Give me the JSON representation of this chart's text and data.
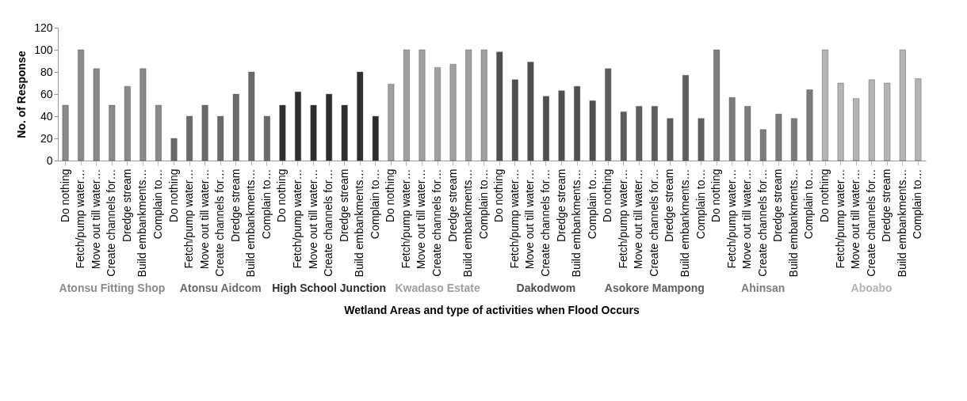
{
  "chart_data": {
    "type": "bar",
    "categories": [
      "Do nothing",
      "Fetch/pump water…",
      "Move out till water…",
      "Create channels for…",
      "Dredge stream",
      "Build embankments…",
      "Complain to…",
      "Do nothing",
      "Fetch/pump water…",
      "Move out till water…",
      "Create channels for…",
      "Dredge stream",
      "Build embankments…",
      "Complain to…",
      "Do nothing",
      "Fetch/pump water…",
      "Move out till water…",
      "Create channels for…",
      "Dredge stream",
      "Build embankments…",
      "Complain to…",
      "Do nothing",
      "Fetch/pump water…",
      "Move out till water…",
      "Create channels for…",
      "Dredge stream",
      "Build embankments…",
      "Complain to…",
      "Do nothing",
      "Fetch/pump water…",
      "Move out till water…",
      "Create channels for…",
      "Dredge stream",
      "Build embankments…",
      "Complain to…",
      "Do nothing",
      "Fetch/pump water…",
      "Move out till water…",
      "Create channels for…",
      "Dredge stream",
      "Build embankments…",
      "Complain to…",
      "Do nothing",
      "Fetch/pump water…",
      "Move out till water…",
      "Create channels for…",
      "Dredge stream",
      "Build embankments…",
      "Complain to…",
      "Do nothing",
      "Fetch/pump water…",
      "Move out till water…",
      "Create channels for…",
      "Dredge stream",
      "Build embankments…",
      "Complain to…"
    ],
    "series": [
      {
        "name": "Atonsu  Fitting Shop",
        "color": "#8a8a8a",
        "values": [
          50,
          100,
          83,
          50,
          67,
          83,
          50,
          null,
          null,
          null,
          null,
          null,
          null,
          null,
          null,
          null,
          null,
          null,
          null,
          null,
          null,
          null,
          null,
          null,
          null,
          null,
          null,
          null,
          null,
          null,
          null,
          null,
          null,
          null,
          null,
          null,
          null,
          null,
          null,
          null,
          null,
          null,
          null,
          null,
          null,
          null,
          null,
          null,
          null,
          null,
          null,
          null,
          null,
          null,
          null,
          null
        ]
      },
      {
        "name": "Atonsu Aidcom",
        "color": "#6a6a6a",
        "values": [
          null,
          null,
          null,
          null,
          null,
          null,
          null,
          20,
          40,
          50,
          40,
          60,
          80,
          40,
          null,
          null,
          null,
          null,
          null,
          null,
          null,
          null,
          null,
          null,
          null,
          null,
          null,
          null,
          null,
          null,
          null,
          null,
          null,
          null,
          null,
          null,
          null,
          null,
          null,
          null,
          null,
          null,
          null,
          null,
          null,
          null,
          null,
          null,
          null,
          null,
          null,
          null,
          null,
          null,
          null,
          null
        ]
      },
      {
        "name": "High School Junction",
        "color": "#2e2e2e",
        "values": [
          null,
          null,
          null,
          null,
          null,
          null,
          null,
          null,
          null,
          null,
          null,
          null,
          null,
          null,
          50,
          62,
          50,
          60,
          50,
          80,
          40,
          null,
          null,
          null,
          null,
          null,
          null,
          null,
          null,
          null,
          null,
          null,
          null,
          null,
          null,
          null,
          null,
          null,
          null,
          null,
          null,
          null,
          null,
          null,
          null,
          null,
          null,
          null,
          null,
          null,
          null,
          null,
          null,
          null,
          null,
          null
        ]
      },
      {
        "name": "Kwadaso Estate",
        "color": "#a0a0a0",
        "values": [
          null,
          null,
          null,
          null,
          null,
          null,
          null,
          null,
          null,
          null,
          null,
          null,
          null,
          null,
          null,
          null,
          null,
          null,
          null,
          null,
          null,
          69,
          100,
          100,
          84,
          87,
          100,
          100,
          null,
          null,
          null,
          null,
          null,
          null,
          null,
          null,
          null,
          null,
          null,
          null,
          null,
          null,
          null,
          null,
          null,
          null,
          null,
          null,
          null,
          null,
          null,
          null,
          null,
          null,
          null,
          null
        ]
      },
      {
        "name": "Dakodwom",
        "color": "#505050",
        "values": [
          null,
          null,
          null,
          null,
          null,
          null,
          null,
          null,
          null,
          null,
          null,
          null,
          null,
          null,
          null,
          null,
          null,
          null,
          null,
          null,
          null,
          null,
          null,
          null,
          null,
          null,
          null,
          null,
          98,
          73,
          89,
          58,
          63,
          67,
          54,
          null,
          null,
          null,
          null,
          null,
          null,
          null,
          null,
          null,
          null,
          null,
          null,
          null,
          null,
          null,
          null,
          null,
          null,
          null,
          null,
          null
        ]
      },
      {
        "name": "Asokore Mampong",
        "color": "#5e5e5e",
        "values": [
          null,
          null,
          null,
          null,
          null,
          null,
          null,
          null,
          null,
          null,
          null,
          null,
          null,
          null,
          null,
          null,
          null,
          null,
          null,
          null,
          null,
          null,
          null,
          null,
          null,
          null,
          null,
          null,
          null,
          null,
          null,
          null,
          null,
          null,
          null,
          83,
          44,
          49,
          49,
          38,
          77,
          38,
          null,
          null,
          null,
          null,
          null,
          null,
          null,
          null,
          null,
          null,
          null,
          null,
          null,
          null
        ]
      },
      {
        "name": "Ahinsan",
        "color": "#7c7c7c",
        "values": [
          null,
          null,
          null,
          null,
          null,
          null,
          null,
          null,
          null,
          null,
          null,
          null,
          null,
          null,
          null,
          null,
          null,
          null,
          null,
          null,
          null,
          null,
          null,
          null,
          null,
          null,
          null,
          null,
          null,
          null,
          null,
          null,
          null,
          null,
          null,
          null,
          null,
          null,
          null,
          null,
          null,
          null,
          100,
          57,
          49,
          28,
          42,
          38,
          64,
          null,
          null,
          null,
          null,
          null,
          null,
          null
        ]
      },
      {
        "name": "Aboabo",
        "color": "#b4b4b4",
        "values": [
          null,
          null,
          null,
          null,
          null,
          null,
          null,
          null,
          null,
          null,
          null,
          null,
          null,
          null,
          null,
          null,
          null,
          null,
          null,
          null,
          null,
          null,
          null,
          null,
          null,
          null,
          null,
          null,
          null,
          null,
          null,
          null,
          null,
          null,
          null,
          null,
          null,
          null,
          null,
          null,
          null,
          null,
          null,
          null,
          null,
          null,
          null,
          null,
          null,
          100,
          70,
          56,
          73,
          70,
          100,
          74
        ]
      }
    ],
    "xlabel": "Wetland Areas and type of activities when Flood Occurs",
    "ylabel": "No. of Response",
    "ylim": [
      0,
      120
    ],
    "yticks": [
      0,
      20,
      40,
      60,
      80,
      100,
      120
    ]
  }
}
